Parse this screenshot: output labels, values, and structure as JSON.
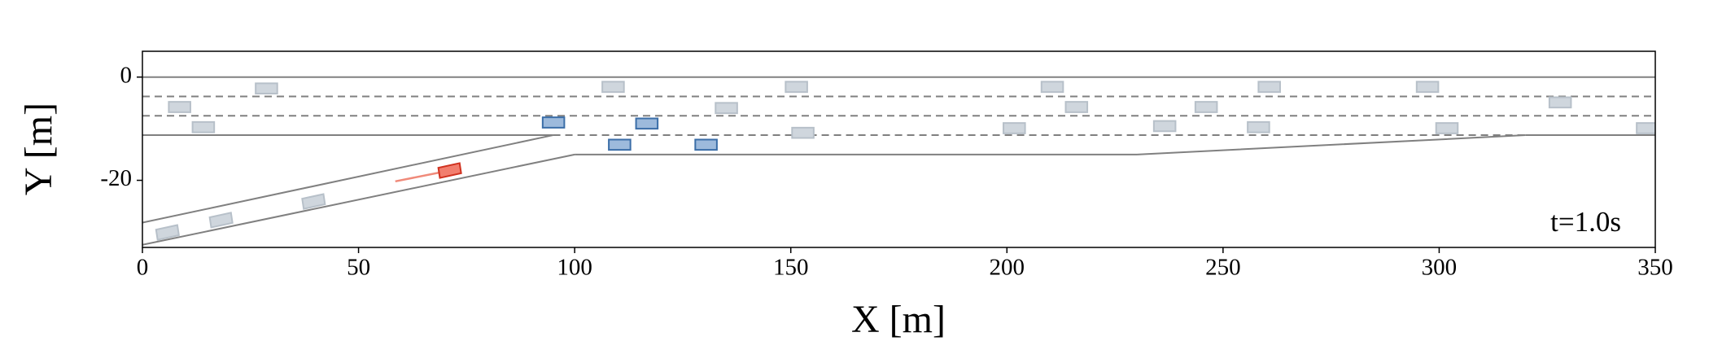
{
  "chart_data": {
    "type": "scatter",
    "xlabel": "X [m]",
    "ylabel": "Y [m]",
    "annotation": "t=1.0s",
    "xlim": [
      0,
      350
    ],
    "ylim": [
      -33,
      5
    ],
    "xticks": [
      0,
      50,
      100,
      150,
      200,
      250,
      300,
      350
    ],
    "yticks": [
      0,
      -20
    ],
    "road_color": "#808080",
    "road": [
      {
        "x": [
          0,
          350
        ],
        "y": [
          0,
          0
        ],
        "dashed": false
      },
      {
        "x": [
          0,
          350
        ],
        "y": [
          -3.75,
          -3.75
        ],
        "dashed": true
      },
      {
        "x": [
          0,
          350
        ],
        "y": [
          -7.5,
          -7.5
        ],
        "dashed": true
      },
      {
        "x": [
          0,
          95
        ],
        "y": [
          -11.25,
          -11.25
        ],
        "dashed": false
      },
      {
        "x": [
          95,
          320
        ],
        "y": [
          -11.25,
          -11.25
        ],
        "dashed": true
      },
      {
        "x": [
          320,
          350
        ],
        "y": [
          -11.25,
          -11.25
        ],
        "dashed": false
      },
      {
        "x": [
          100,
          230,
          320
        ],
        "y": [
          -15,
          -15,
          -11.25
        ],
        "dashed": false
      },
      {
        "x": [
          0,
          95
        ],
        "y": [
          -28.2,
          -11.25
        ],
        "dashed": false
      },
      {
        "x": [
          0,
          100
        ],
        "y": [
          -32.5,
          -15
        ],
        "dashed": false
      }
    ],
    "vehicle_length": 5,
    "vehicle_width": 2,
    "trajectory": {
      "x": [
        58.5,
        71.1
      ],
      "y": [
        -20.2,
        -18.1
      ],
      "color": "#f08a7a"
    },
    "vehicle_groups": [
      {
        "color": "#cfd6dd",
        "edge": "#b7c0c9",
        "x": [
          28.7,
          8.6,
          14.1,
          108.9,
          151.3,
          135.1,
          152.8,
          210.5,
          216.1,
          201.7,
          236.5,
          246.1,
          260.7,
          258.2,
          297.3,
          301.8,
          328.0,
          348.2,
          5.8,
          18.2,
          39.6
        ],
        "y": [
          -2.2,
          -5.8,
          -9.7,
          -1.9,
          -1.9,
          -6.0,
          -10.8,
          -1.9,
          -5.8,
          -9.9,
          -9.5,
          -5.8,
          -1.9,
          -9.7,
          -1.9,
          -9.9,
          -4.9,
          -9.9,
          -30.1,
          -27.7,
          -24.1
        ],
        "heading": [
          0,
          0,
          0,
          0,
          0,
          0,
          0,
          0,
          0,
          0,
          0,
          0,
          0,
          0,
          0,
          0,
          0,
          0,
          10.3,
          10.3,
          10.3
        ]
      },
      {
        "color": "#9dbadc",
        "edge": "#3b6ea8",
        "x": [
          95.1,
          110.4,
          116.7,
          130.4
        ],
        "y": [
          -8.8,
          -13.1,
          -9.0,
          -13.1
        ],
        "heading": [
          0,
          0,
          0,
          0
        ]
      },
      {
        "color": "#f27e6e",
        "edge": "#d0311f",
        "x": [
          71.1
        ],
        "y": [
          -18.1
        ],
        "heading": [
          10.3
        ]
      }
    ]
  }
}
